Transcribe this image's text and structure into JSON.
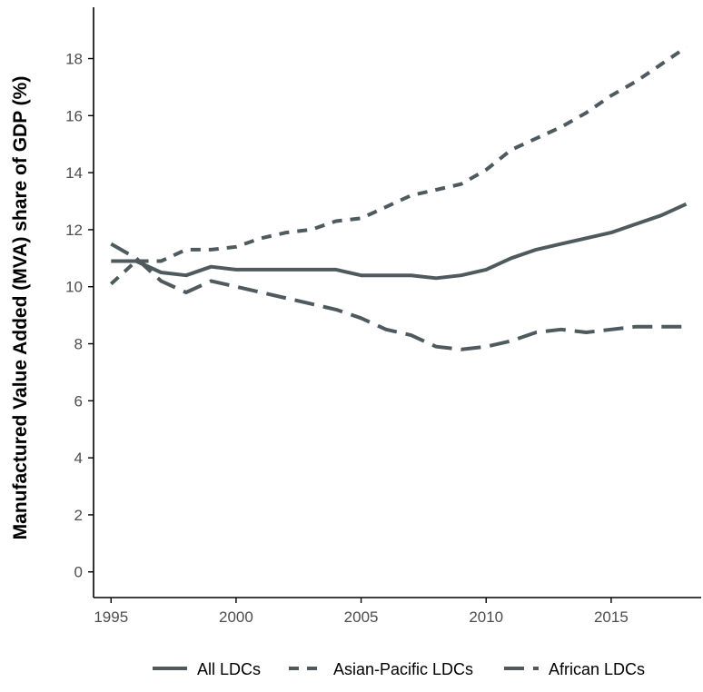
{
  "chart_data": {
    "type": "line",
    "title": "",
    "xlabel": "",
    "ylabel": "Manufactured Value Added (MVA) share of GDP (%)",
    "xlim": [
      1994.3,
      2018.6
    ],
    "ylim": [
      -0.9,
      19.8
    ],
    "xticks": [
      1995,
      2000,
      2005,
      2010,
      2015
    ],
    "yticks": [
      0,
      2,
      4,
      6,
      8,
      10,
      12,
      14,
      16,
      18
    ],
    "grid": false,
    "legend_position": "bottom",
    "x": [
      1995,
      1996,
      1997,
      1998,
      1999,
      2000,
      2001,
      2002,
      2003,
      2004,
      2005,
      2006,
      2007,
      2008,
      2009,
      2010,
      2011,
      2012,
      2013,
      2014,
      2015,
      2016,
      2017,
      2018
    ],
    "series": [
      {
        "name": "All LDCs",
        "dash": "solid",
        "color": "#4f5a5e",
        "values": [
          10.9,
          10.9,
          10.5,
          10.4,
          10.7,
          10.6,
          10.6,
          10.6,
          10.6,
          10.6,
          10.4,
          10.4,
          10.4,
          10.3,
          10.4,
          10.6,
          11.0,
          11.3,
          11.5,
          11.7,
          11.9,
          12.2,
          12.5,
          12.9
        ]
      },
      {
        "name": "Asian-Pacific LDCs",
        "dash": "dashed",
        "color": "#4f5a5e",
        "values": [
          10.1,
          10.9,
          10.9,
          11.3,
          11.3,
          11.4,
          11.7,
          11.9,
          12.0,
          12.3,
          12.4,
          12.8,
          13.2,
          13.4,
          13.6,
          14.1,
          14.8,
          15.2,
          15.6,
          16.1,
          16.7,
          17.2,
          17.8,
          18.4
        ]
      },
      {
        "name": "African LDCs",
        "dash": "longdash",
        "color": "#4f5a5e",
        "values": [
          11.5,
          11.0,
          10.2,
          9.8,
          10.2,
          10.0,
          9.8,
          9.6,
          9.4,
          9.2,
          8.9,
          8.5,
          8.3,
          7.9,
          7.8,
          7.9,
          8.1,
          8.4,
          8.5,
          8.4,
          8.5,
          8.6,
          8.6,
          8.6
        ]
      }
    ]
  }
}
